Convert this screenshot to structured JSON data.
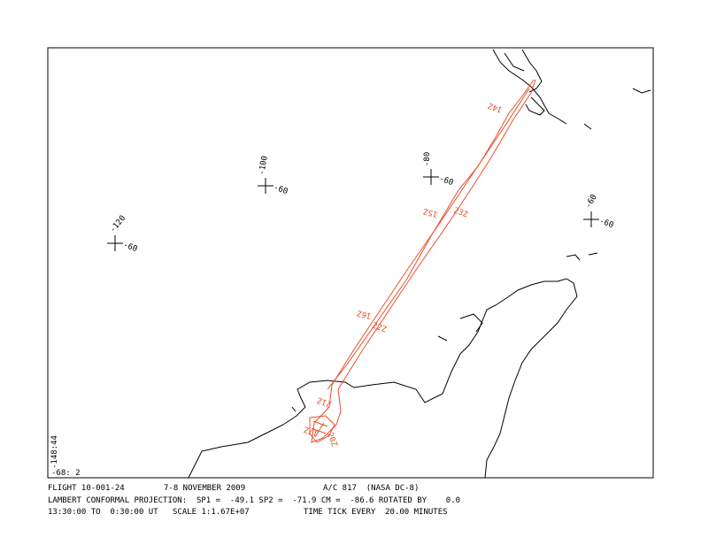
{
  "map": {
    "grid_marks": [
      {
        "lon": "-120",
        "lat": "-60"
      },
      {
        "lon": "-100",
        "lat": "-60"
      },
      {
        "lon": "-80",
        "lat": "-60"
      },
      {
        "lon": "-60",
        "lat": "-60"
      }
    ],
    "corner_labels": [
      "-148:44",
      "-68: 2"
    ],
    "time_labels": [
      "14Z",
      "15Z",
      "23Z",
      "16Z",
      "22Z",
      "21Z",
      "17Z",
      "20Z"
    ],
    "footer": {
      "line1": [
        "FLIGHT 10-001-24",
        "7-8 NOVEMBER 2009",
        "A/C 817  (NASA DC-8)"
      ],
      "line2": [
        "LAMBERT CONFORMAL PROJECTION:  SP1 =  -49.1 SP2 =  -71.9 CM =  -86.6 ROTATED BY    0.0"
      ],
      "line3": [
        "13:30:00 TO  0:30:00 UT",
        "SCALE 1:1.67E+07",
        "TIME TICK EVERY  20.00 MINUTES"
      ]
    }
  }
}
